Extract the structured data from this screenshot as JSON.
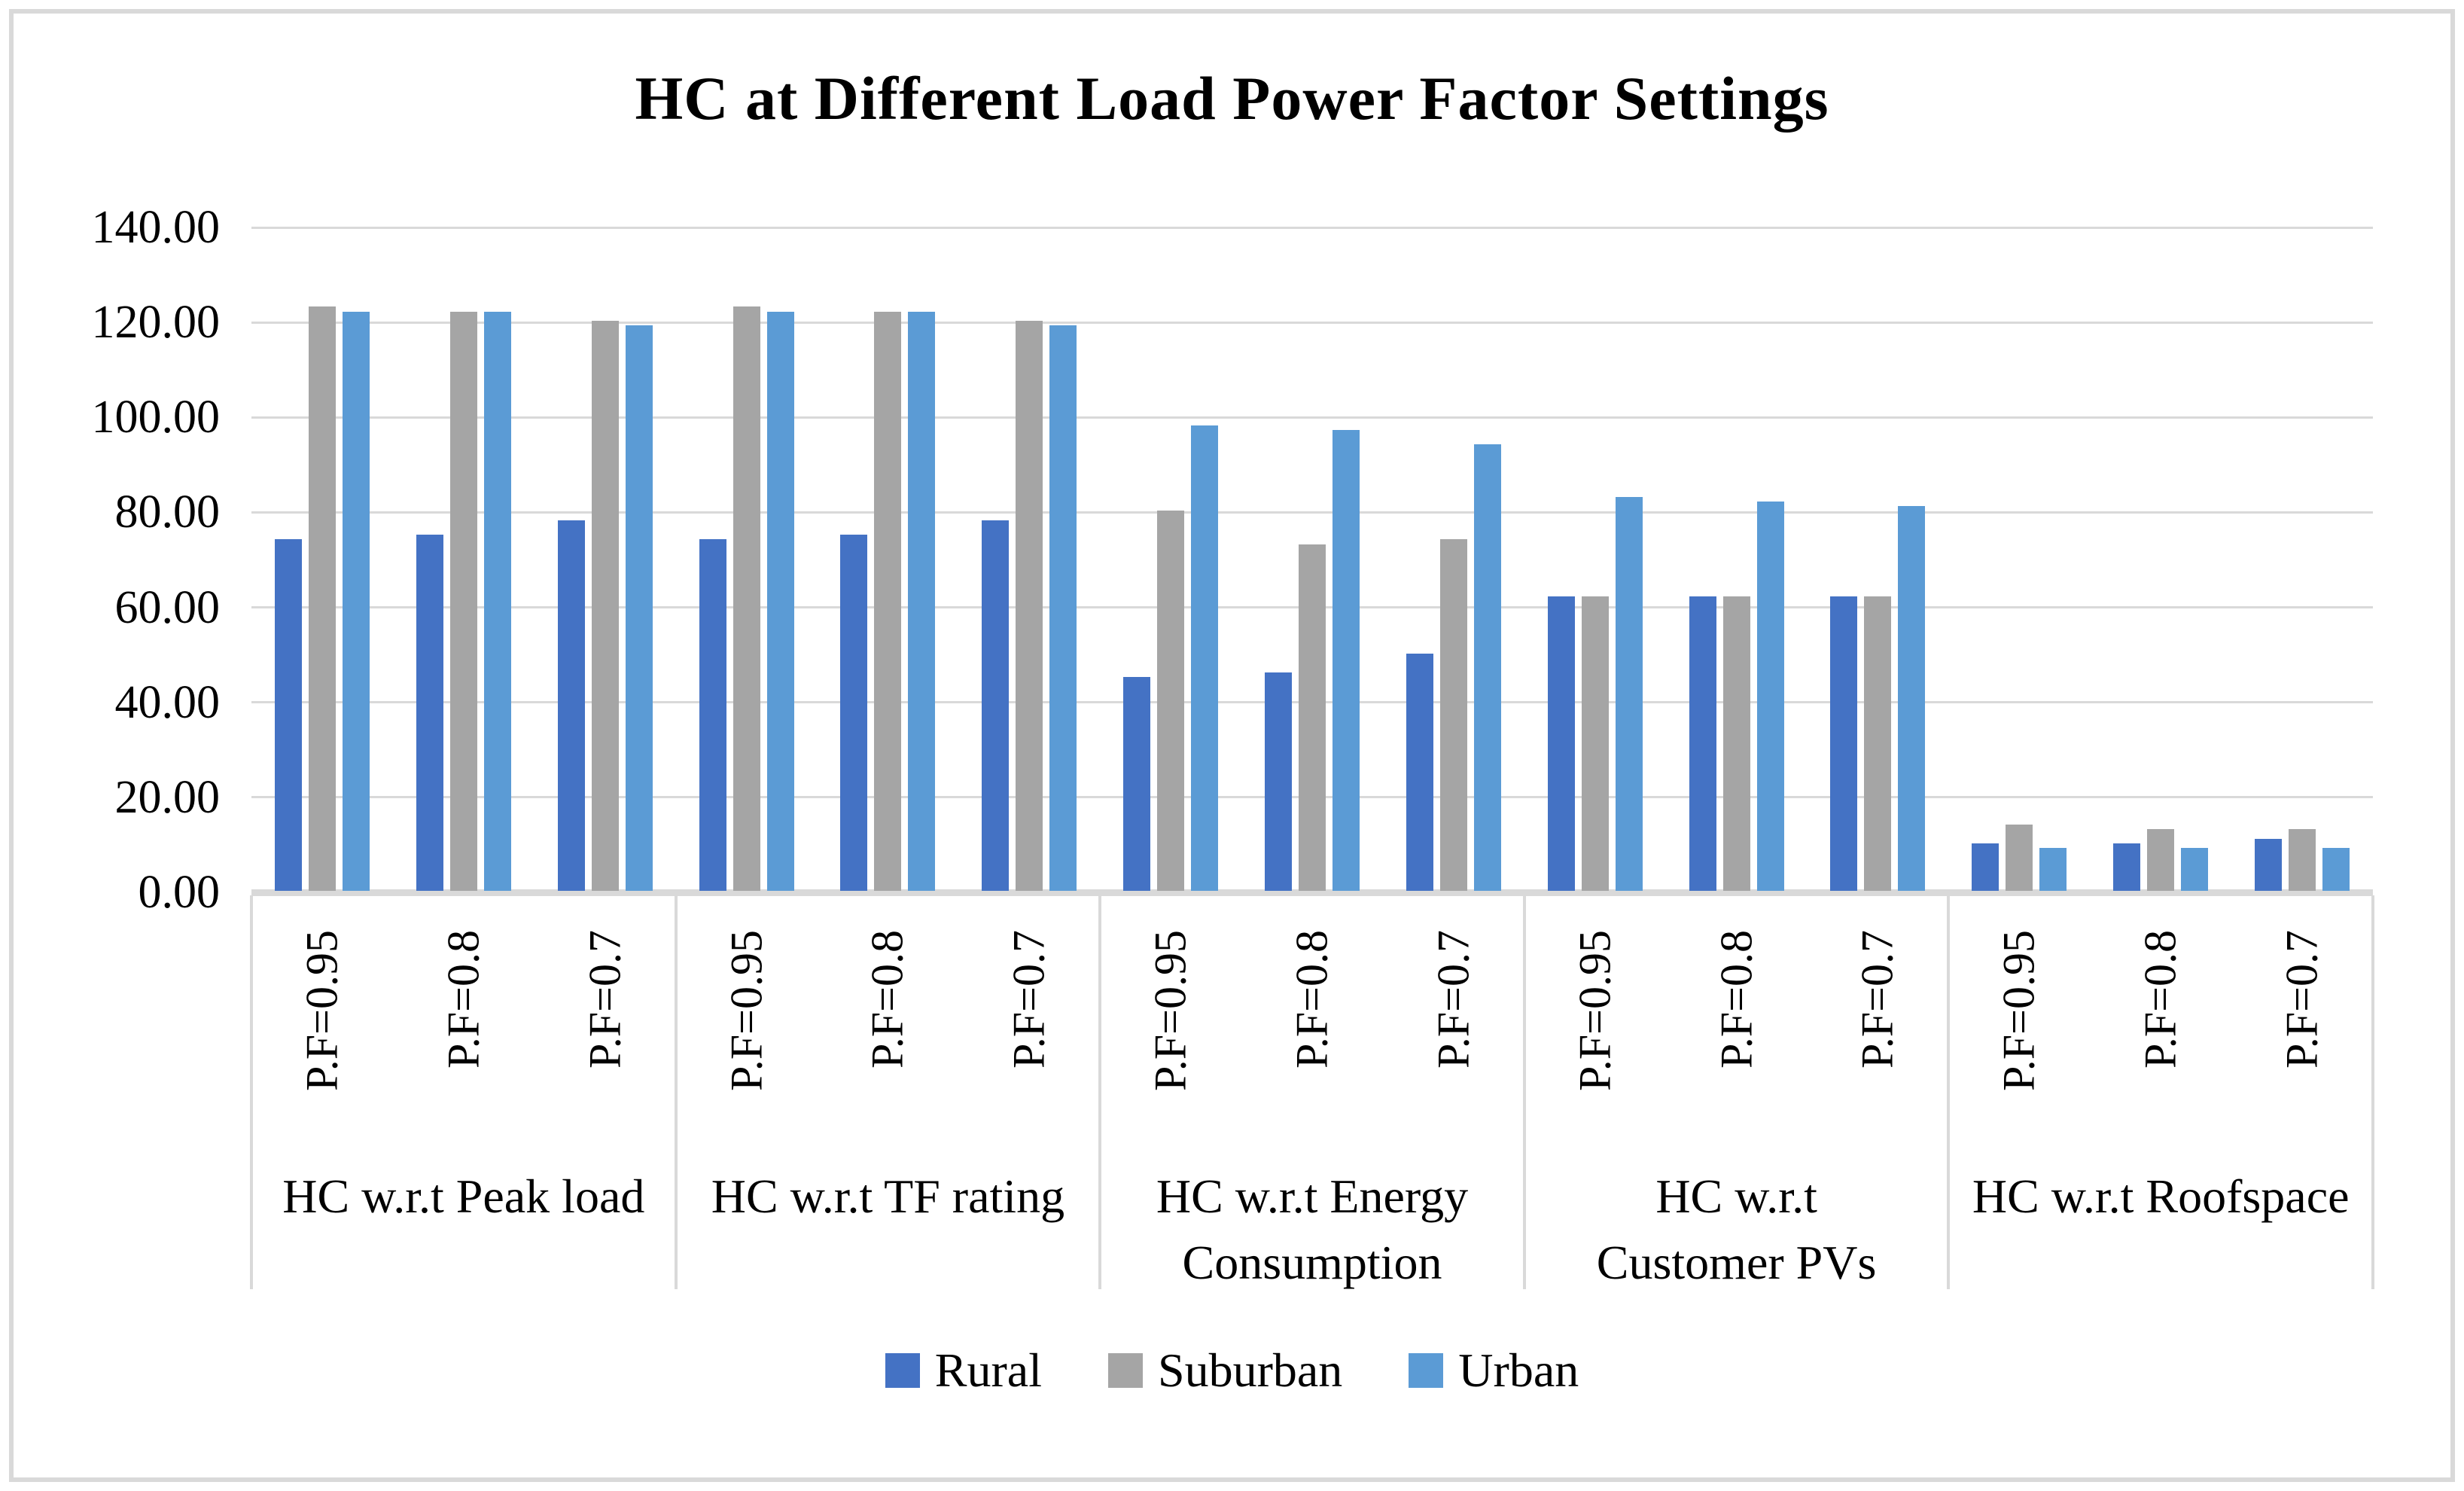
{
  "title": "HC at Different Load Power Factor Settings",
  "chart_data": {
    "type": "bar",
    "title": "HC at Different Load Power Factor Settings",
    "xlabel": "",
    "ylabel": "",
    "ylim": [
      0,
      140
    ],
    "ytick_step": 20,
    "y_tick_labels": [
      "140.00",
      "120.00",
      "100.00",
      "80.00",
      "60.00",
      "40.00",
      "20.00",
      "0.00"
    ],
    "grid": true,
    "legend_position": "bottom",
    "group_labels": [
      "HC w.r.t Peak load",
      "HC w.r.t TF rating",
      "HC w.r.t Energy Consumption",
      "HC w.r.t Customer PVs",
      "HC w.r.t Roofspace"
    ],
    "pf_labels": [
      "P.F=0.95",
      "P.F=0.8",
      "P.F=0.7"
    ],
    "series": [
      {
        "name": "Rural",
        "color": "#4472C4",
        "values": [
          [
            74,
            75,
            78
          ],
          [
            74,
            75,
            78
          ],
          [
            45,
            46,
            50
          ],
          [
            62,
            62,
            62
          ],
          [
            10,
            10,
            11
          ]
        ]
      },
      {
        "name": "Suburban",
        "color": "#A5A5A5",
        "values": [
          [
            123,
            122,
            120
          ],
          [
            123,
            122,
            120
          ],
          [
            80,
            73,
            74
          ],
          [
            62,
            62,
            62
          ],
          [
            14,
            13,
            13
          ]
        ]
      },
      {
        "name": "Urban",
        "color": "#5B9BD5",
        "values": [
          [
            122,
            122,
            119
          ],
          [
            122,
            122,
            119
          ],
          [
            98,
            97,
            94
          ],
          [
            83,
            82,
            81
          ],
          [
            9,
            9,
            9
          ]
        ]
      }
    ],
    "colors": {
      "gridline": "#D9D9D9",
      "axis_line": "#D9D9D9",
      "border": "#D9D9D9",
      "text": "#000000"
    }
  }
}
